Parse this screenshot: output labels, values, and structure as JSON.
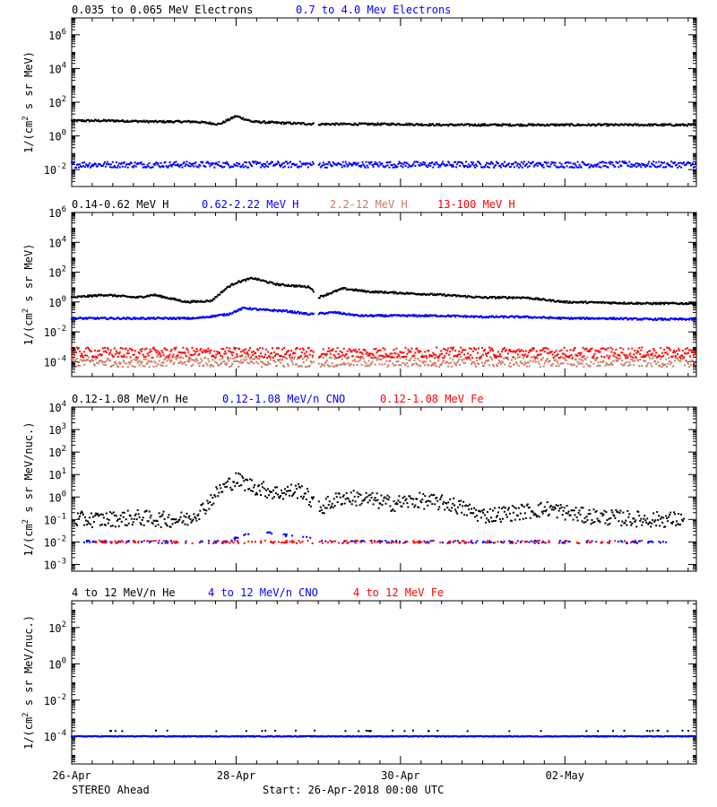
{
  "figure": {
    "spacecraft": "STEREO Ahead",
    "start_label": "Start: 26-Apr-2018 00:00 UTC"
  },
  "chart_data": [
    {
      "type": "scatter",
      "panel": "electrons",
      "ylabel": "1/(cm² s sr MeV)",
      "ylabel_parts": [
        "1/(cm",
        "2",
        " s sr MeV)"
      ],
      "yscale": "log",
      "ylim": [
        0.001,
        10000000
      ],
      "yticks": [
        {
          "value": 0.01,
          "base": "10",
          "exp": "-2"
        },
        {
          "value": 1,
          "base": "10",
          "exp": "0"
        },
        {
          "value": 100,
          "base": "10",
          "exp": "2"
        },
        {
          "value": 10000,
          "base": "10",
          "exp": "4"
        },
        {
          "value": 1000000,
          "base": "10",
          "exp": "6"
        }
      ],
      "series": [
        {
          "name": "0.035 to 0.065 MeV Electrons",
          "color": "#000000",
          "x": [
            0,
            0.5,
            1.0,
            1.5,
            1.8,
            2.0,
            2.2,
            2.5,
            3.0,
            3.5,
            4.0,
            4.5,
            5.0,
            5.5,
            6.0,
            6.5,
            7.0,
            7.6
          ],
          "y": [
            8,
            8,
            7,
            7,
            5,
            15,
            7,
            6,
            5,
            5,
            5,
            4.5,
            4.5,
            4.5,
            4.5,
            4.5,
            4.5,
            4.5
          ]
        },
        {
          "name": "0.7 to 4.0 Mev Electrons",
          "color": "#0000ff",
          "x": [
            0,
            1,
            2,
            3,
            4,
            5,
            6,
            7,
            7.6
          ],
          "y": [
            0.02,
            0.02,
            0.02,
            0.02,
            0.02,
            0.02,
            0.02,
            0.02,
            0.02
          ]
        }
      ]
    },
    {
      "type": "scatter",
      "panel": "protons",
      "ylabel": "1/(cm² s sr MeV)",
      "ylabel_parts": [
        "1/(cm",
        "2",
        " s sr MeV)"
      ],
      "yscale": "log",
      "ylim": [
        1e-05,
        1000000
      ],
      "yticks": [
        {
          "value": 0.0001,
          "base": "10",
          "exp": "-4"
        },
        {
          "value": 0.01,
          "base": "10",
          "exp": "-2"
        },
        {
          "value": 1,
          "base": "10",
          "exp": "0"
        },
        {
          "value": 100,
          "base": "10",
          "exp": "2"
        },
        {
          "value": 10000,
          "base": "10",
          "exp": "4"
        },
        {
          "value": 1000000,
          "base": "10",
          "exp": "6"
        }
      ],
      "series": [
        {
          "name": "0.14-0.62 MeV H",
          "color": "#000000",
          "x": [
            0,
            0.4,
            0.8,
            1.0,
            1.4,
            1.7,
            1.9,
            2.0,
            2.2,
            2.5,
            2.9,
            3.0,
            3.3,
            3.6,
            4.0,
            4.5,
            5.0,
            5.5,
            6.0,
            6.5,
            7.0,
            7.6
          ],
          "y": [
            2,
            3,
            2,
            3,
            1,
            1.2,
            10,
            20,
            40,
            15,
            10,
            2,
            8,
            5,
            4,
            3,
            2,
            2,
            1,
            0.9,
            0.8,
            0.8
          ]
        },
        {
          "name": "0.62-2.22 MeV H",
          "color": "#0000ff",
          "x": [
            0,
            0.5,
            1.0,
            1.5,
            1.9,
            2.1,
            2.3,
            2.6,
            2.9,
            3.2,
            3.5,
            4.0,
            4.5,
            5.0,
            5.5,
            6.0,
            6.5,
            7.0,
            7.6
          ],
          "y": [
            0.08,
            0.08,
            0.08,
            0.08,
            0.15,
            0.4,
            0.3,
            0.25,
            0.15,
            0.2,
            0.12,
            0.12,
            0.12,
            0.1,
            0.1,
            0.08,
            0.08,
            0.07,
            0.07
          ]
        },
        {
          "name": "2.2-12 MeV H",
          "color": "#c87a64",
          "x": [
            0,
            1,
            2,
            3,
            4,
            5,
            6,
            7,
            7.6
          ],
          "y": [
            0.0001,
            0.0001,
            0.0001,
            0.0001,
            0.0001,
            0.0001,
            0.0001,
            0.0001,
            0.0001
          ]
        },
        {
          "name": "13-100 MeV H",
          "color": "#ff0000",
          "x": [
            0,
            1,
            2,
            3,
            4,
            5,
            6,
            7,
            7.6
          ],
          "y": [
            0.0004,
            0.0004,
            0.0004,
            0.0004,
            0.0004,
            0.0004,
            0.0004,
            0.0004,
            0.0004
          ]
        }
      ]
    },
    {
      "type": "scatter",
      "panel": "heavy-low",
      "ylabel": "1/(cm² s sr MeV/nuc.)",
      "ylabel_parts": [
        "1/(cm",
        "2",
        " s sr MeV/nuc.)"
      ],
      "yscale": "log",
      "ylim": [
        0.0005,
        10000
      ],
      "yticks": [
        {
          "value": 0.001,
          "base": "10",
          "exp": "-3"
        },
        {
          "value": 0.01,
          "base": "10",
          "exp": "-2"
        },
        {
          "value": 0.1,
          "base": "10",
          "exp": "-1"
        },
        {
          "value": 1,
          "base": "10",
          "exp": "0"
        },
        {
          "value": 10,
          "base": "10",
          "exp": "1"
        },
        {
          "value": 100,
          "base": "10",
          "exp": "2"
        },
        {
          "value": 1000,
          "base": "10",
          "exp": "3"
        },
        {
          "value": 10000,
          "base": "10",
          "exp": "4"
        }
      ],
      "series": [
        {
          "name": "0.12-1.08 MeV/n He",
          "color": "#000000",
          "x": [
            0.1,
            0.4,
            0.8,
            1.1,
            1.4,
            1.6,
            1.8,
            2.0,
            2.2,
            2.5,
            2.8,
            3.0,
            3.3,
            3.6,
            3.9,
            4.2,
            4.6,
            5.0,
            5.4,
            5.8,
            6.2,
            6.6,
            7.0,
            7.4
          ],
          "y": [
            0.1,
            0.1,
            0.12,
            0.1,
            0.1,
            0.3,
            2,
            6,
            3,
            1.5,
            2,
            0.3,
            1,
            0.8,
            0.5,
            0.7,
            0.5,
            0.15,
            0.2,
            0.3,
            0.15,
            0.12,
            0.1,
            0.1
          ]
        },
        {
          "name": "0.12-1.08 MeV/n CNO",
          "color": "#0000ff",
          "x": [
            0.2,
            1.0,
            1.9,
            2.2,
            2.6,
            3.2,
            4.0,
            4.8,
            5.6,
            6.4,
            7.2
          ],
          "y": [
            0.01,
            0.01,
            0.01,
            0.03,
            0.02,
            0.01,
            0.01,
            0.01,
            0.01,
            0.01,
            0.01
          ]
        },
        {
          "name": "0.12-1.08 MeV Fe",
          "color": "#ff0000",
          "x": [
            0.3,
            1.2,
            2.4,
            3.5,
            4.6,
            5.8,
            6.9
          ],
          "y": [
            0.01,
            0.01,
            0.01,
            0.01,
            0.01,
            0.01,
            0.01
          ]
        }
      ]
    },
    {
      "type": "scatter",
      "panel": "heavy-high",
      "ylabel": "1/(cm² s sr MeV/nuc.)",
      "ylabel_parts": [
        "1/(cm",
        "2",
        " s sr MeV/nuc.)"
      ],
      "yscale": "log",
      "ylim": [
        3e-06,
        3000
      ],
      "yticks": [
        {
          "value": 0.0001,
          "base": "10",
          "exp": "-4"
        },
        {
          "value": 0.01,
          "base": "10",
          "exp": "-2"
        },
        {
          "value": 1,
          "base": "10",
          "exp": "0"
        },
        {
          "value": 100,
          "base": "10",
          "exp": "2"
        }
      ],
      "series": [
        {
          "name": "4 to 12 MeV/n He",
          "color": "#000000",
          "x": [
            0.3,
            0.9,
            1.6,
            2.3,
            3.1,
            3.9,
            4.6,
            5.4,
            6.2,
            6.9,
            7.5
          ],
          "y": [
            0.0002,
            0.0002,
            0.0002,
            0.0002,
            0.0002,
            0.0002,
            0.0002,
            0.0002,
            0.0002,
            0.0002,
            0.0002
          ]
        },
        {
          "name": "4 to 12 MeV/n CNO",
          "color": "#0000ff",
          "x": [
            0,
            1,
            2,
            3,
            4,
            5,
            6,
            7,
            7.6
          ],
          "y": [
            0.0001,
            0.0001,
            0.0001,
            0.0001,
            0.0001,
            0.0001,
            0.0001,
            0.0001,
            0.0001
          ]
        },
        {
          "name": "4 to 12 MeV Fe",
          "color": "#ff0000",
          "x": [],
          "y": []
        }
      ]
    }
  ],
  "xaxis": {
    "xlim": [
      0,
      7.6
    ],
    "ticks": [
      {
        "value": 0,
        "label": "26-Apr"
      },
      {
        "value": 2,
        "label": "28-Apr"
      },
      {
        "value": 4,
        "label": "30-Apr"
      },
      {
        "value": 6,
        "label": "02-May"
      }
    ]
  }
}
